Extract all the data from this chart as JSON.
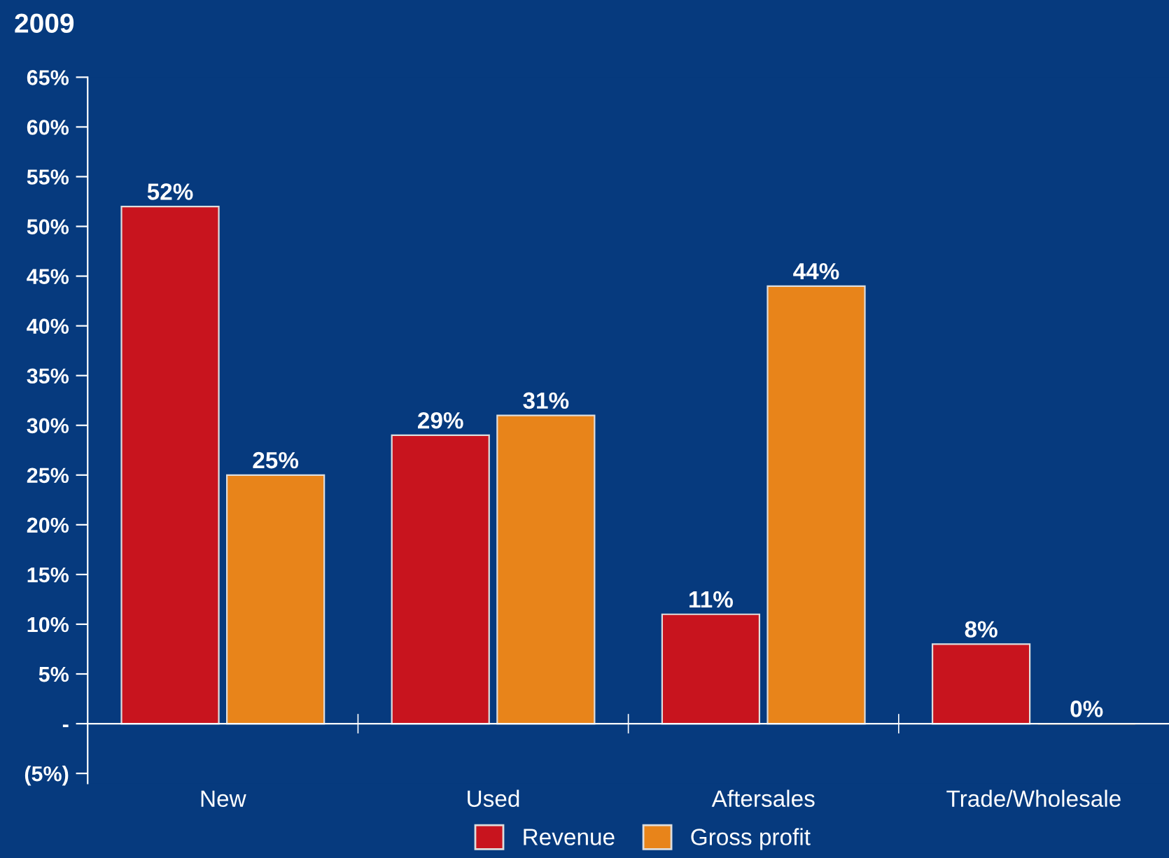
{
  "chart_data": {
    "type": "bar",
    "title": "2009",
    "categories": [
      "New",
      "Used",
      "Aftersales",
      "Trade/Wholesale"
    ],
    "series": [
      {
        "name": "Revenue",
        "color": "#c8141e",
        "values": [
          52,
          29,
          11,
          8
        ],
        "value_labels": [
          "52%",
          "29%",
          "11%",
          "8%"
        ]
      },
      {
        "name": "Gross profit",
        "color": "#e8841a",
        "values": [
          25,
          31,
          44,
          0
        ],
        "value_labels": [
          "25%",
          "31%",
          "44%",
          "0%"
        ]
      }
    ],
    "ylim": [
      -6,
      65
    ],
    "yticks": [
      {
        "value": -5,
        "label": "(5%)"
      },
      {
        "value": 0,
        "label": "-"
      },
      {
        "value": 5,
        "label": "5%"
      },
      {
        "value": 10,
        "label": "10%"
      },
      {
        "value": 15,
        "label": "15%"
      },
      {
        "value": 20,
        "label": "20%"
      },
      {
        "value": 25,
        "label": "25%"
      },
      {
        "value": 30,
        "label": "30%"
      },
      {
        "value": 35,
        "label": "35%"
      },
      {
        "value": 40,
        "label": "40%"
      },
      {
        "value": 45,
        "label": "45%"
      },
      {
        "value": 50,
        "label": "50%"
      },
      {
        "value": 55,
        "label": "55%"
      },
      {
        "value": 60,
        "label": "60%"
      },
      {
        "value": 65,
        "label": "65%"
      }
    ],
    "legend": "bottom"
  }
}
